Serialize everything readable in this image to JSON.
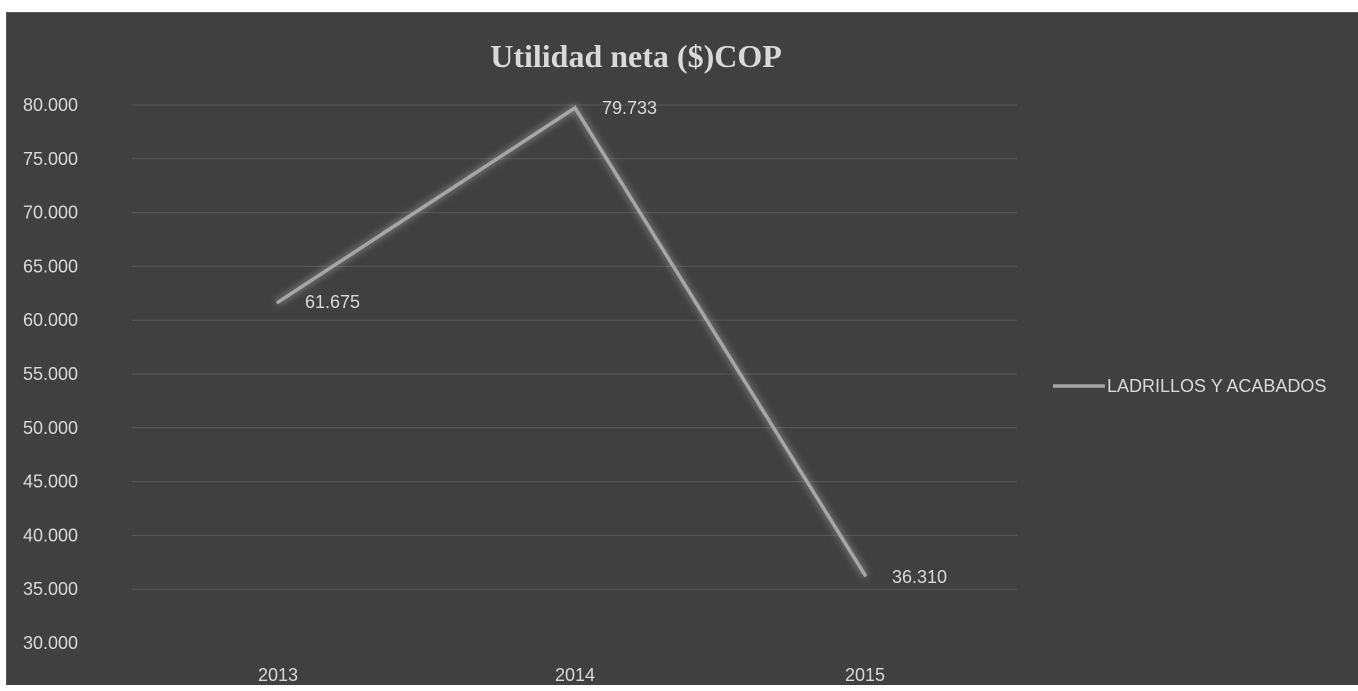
{
  "chart_data": {
    "type": "line",
    "title": "Utilidad neta ($)COP",
    "xlabel": "",
    "ylabel": "",
    "categories": [
      "2013",
      "2014",
      "2015"
    ],
    "ylim": [
      30000,
      80000
    ],
    "y_ticks": [
      30000,
      35000,
      40000,
      45000,
      50000,
      55000,
      60000,
      65000,
      70000,
      75000,
      80000
    ],
    "y_tick_labels": [
      "30.000",
      "35.000",
      "40.000",
      "45.000",
      "50.000",
      "55.000",
      "60.000",
      "65.000",
      "70.000",
      "75.000",
      "80.000"
    ],
    "grid": true,
    "legend_position": "right",
    "series": [
      {
        "name": "LADRILLOS Y ACABADOS",
        "values": [
          61675,
          79733,
          36310
        ],
        "data_labels": [
          "61.675",
          "79.733",
          "36.310"
        ],
        "color": "#a6a6a6"
      }
    ]
  },
  "colors": {
    "background": "#404040",
    "gridline": "#595959",
    "text": "#d9d9d9",
    "title": "#d9d9d9"
  }
}
